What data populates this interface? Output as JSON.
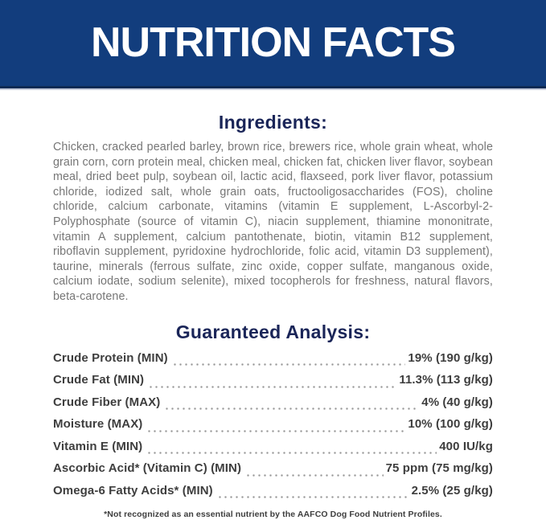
{
  "banner": {
    "title": "NUTRITION FACTS"
  },
  "ingredients": {
    "heading": "Ingredients:",
    "text": "Chicken, cracked pearled barley, brown rice, brewers rice, whole grain wheat, whole grain corn, corn protein meal, chicken meal, chicken fat, chicken liver flavor, soybean meal, dried beet pulp, soybean oil, lactic acid, flaxseed, pork liver flavor, potassium chloride, iodized salt, whole grain oats, fructooligosaccharides (FOS), choline chloride, calcium carbonate, vitamins (vitamin E supplement, L-Ascorbyl-2-Polyphosphate (source of vitamin C), niacin supplement, thiamine mononitrate, vitamin A supplement, calcium pantothenate, biotin, vitamin B12 supplement, riboflavin supplement, pyridoxine hydrochloride, folic acid, vitamin D3 supplement), taurine, minerals (ferrous sulfate, zinc oxide, copper sulfate, manganous oxide, calcium iodate, sodium selenite), mixed tocopherols for freshness, natural flavors, beta-carotene."
  },
  "guaranteed_analysis": {
    "heading": "Guaranteed Analysis:",
    "rows": [
      {
        "label": "Crude Protein (MIN)",
        "value": "19% (190 g/kg)"
      },
      {
        "label": "Crude Fat (MIN)",
        "value": "11.3% (113 g/kg)"
      },
      {
        "label": "Crude Fiber (MAX)",
        "value": "4% (40 g/kg)"
      },
      {
        "label": "Moisture (MAX)",
        "value": "10% (100 g/kg)"
      },
      {
        "label": "Vitamin E (MIN)",
        "value": "400 IU/kg"
      },
      {
        "label": "Ascorbic Acid* (Vitamin C) (MIN)",
        "value": "75 ppm (75 mg/kg)"
      },
      {
        "label": "Omega-6 Fatty Acids* (MIN)",
        "value": "2.5% (25 g/kg)"
      }
    ],
    "footnote": "*Not recognized as an essential nutrient by the AAFCO Dog Food Nutrient Profiles."
  },
  "colors": {
    "banner_bg": "#123d7d",
    "banner_edge": "#0c2a55",
    "banner_underline": "#c7cbdb",
    "heading_navy": "#1a2558",
    "body_gray": "#767676",
    "analysis_text": "#3e3e3e",
    "banner_text": "#ffffff"
  }
}
